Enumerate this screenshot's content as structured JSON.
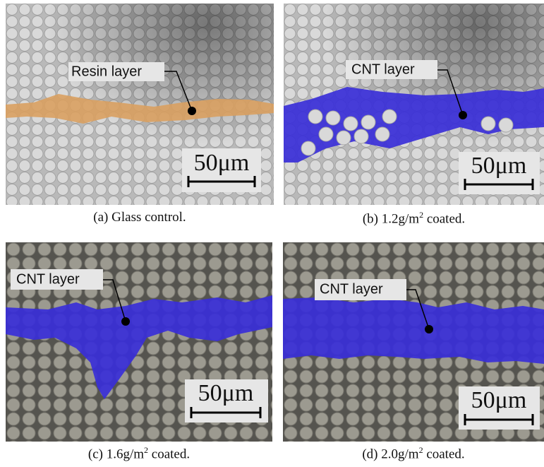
{
  "panels": [
    {
      "label": "Resin layer",
      "scale": "50μm",
      "caption": {
        "tag": "(a)",
        "text": "Glass control."
      }
    },
    {
      "label": "CNT layer",
      "scale": "50μm",
      "caption": {
        "tag": "(b)",
        "text": "1.2g/m",
        "sup": "2",
        "rest": "coated."
      }
    },
    {
      "label": "CNT layer",
      "scale": "50μm",
      "caption": {
        "tag": "(c)",
        "text": "1.6g/m",
        "sup": "2",
        "rest": "coated."
      }
    },
    {
      "label": "CNT layer",
      "scale": "50μm",
      "caption": {
        "tag": "(d)",
        "text": "2.0g/m",
        "sup": "2",
        "rest": "coated."
      }
    }
  ]
}
